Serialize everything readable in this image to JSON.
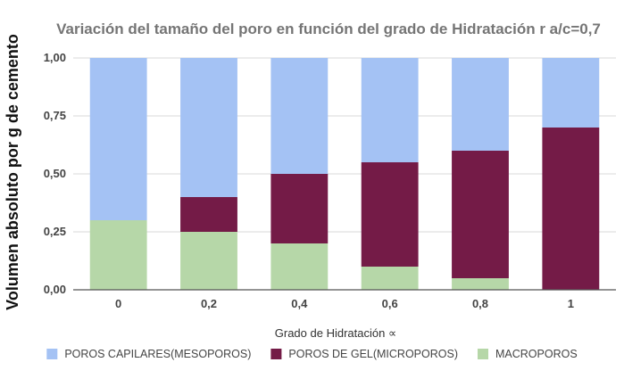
{
  "chart_data": {
    "type": "bar",
    "stacked": true,
    "title": "Variación del tamaño del poro en función del grado de Hidratación  r a/c=0,7",
    "xlabel": "Grado de Hidratación  ∝",
    "ylabel": "Volumen absoluto por g de cemento",
    "categories": [
      "0",
      "0,2",
      "0,4",
      "0,6",
      "0,8",
      "1"
    ],
    "ylim": [
      0,
      1
    ],
    "yticks": [
      "0,00",
      "0,25",
      "0,50",
      "0,75",
      "1,00"
    ],
    "grid": true,
    "legend_position": "bottom",
    "series": [
      {
        "name": "MACROPOROS",
        "color": "#b6d7a8",
        "values": [
          0.3,
          0.25,
          0.2,
          0.1,
          0.05,
          0.0
        ]
      },
      {
        "name": "POROS DE GEL(MICROPOROS)",
        "color": "#741b47",
        "values": [
          0.0,
          0.15,
          0.3,
          0.45,
          0.55,
          0.7
        ]
      },
      {
        "name": "POROS CAPILARES(MESOPOROS)",
        "color": "#a4c2f4",
        "values": [
          0.7,
          0.6,
          0.5,
          0.45,
          0.4,
          0.3
        ]
      }
    ],
    "legend_order": [
      "POROS CAPILARES(MESOPOROS)",
      "POROS DE GEL(MICROPOROS)",
      "MACROPOROS"
    ]
  }
}
